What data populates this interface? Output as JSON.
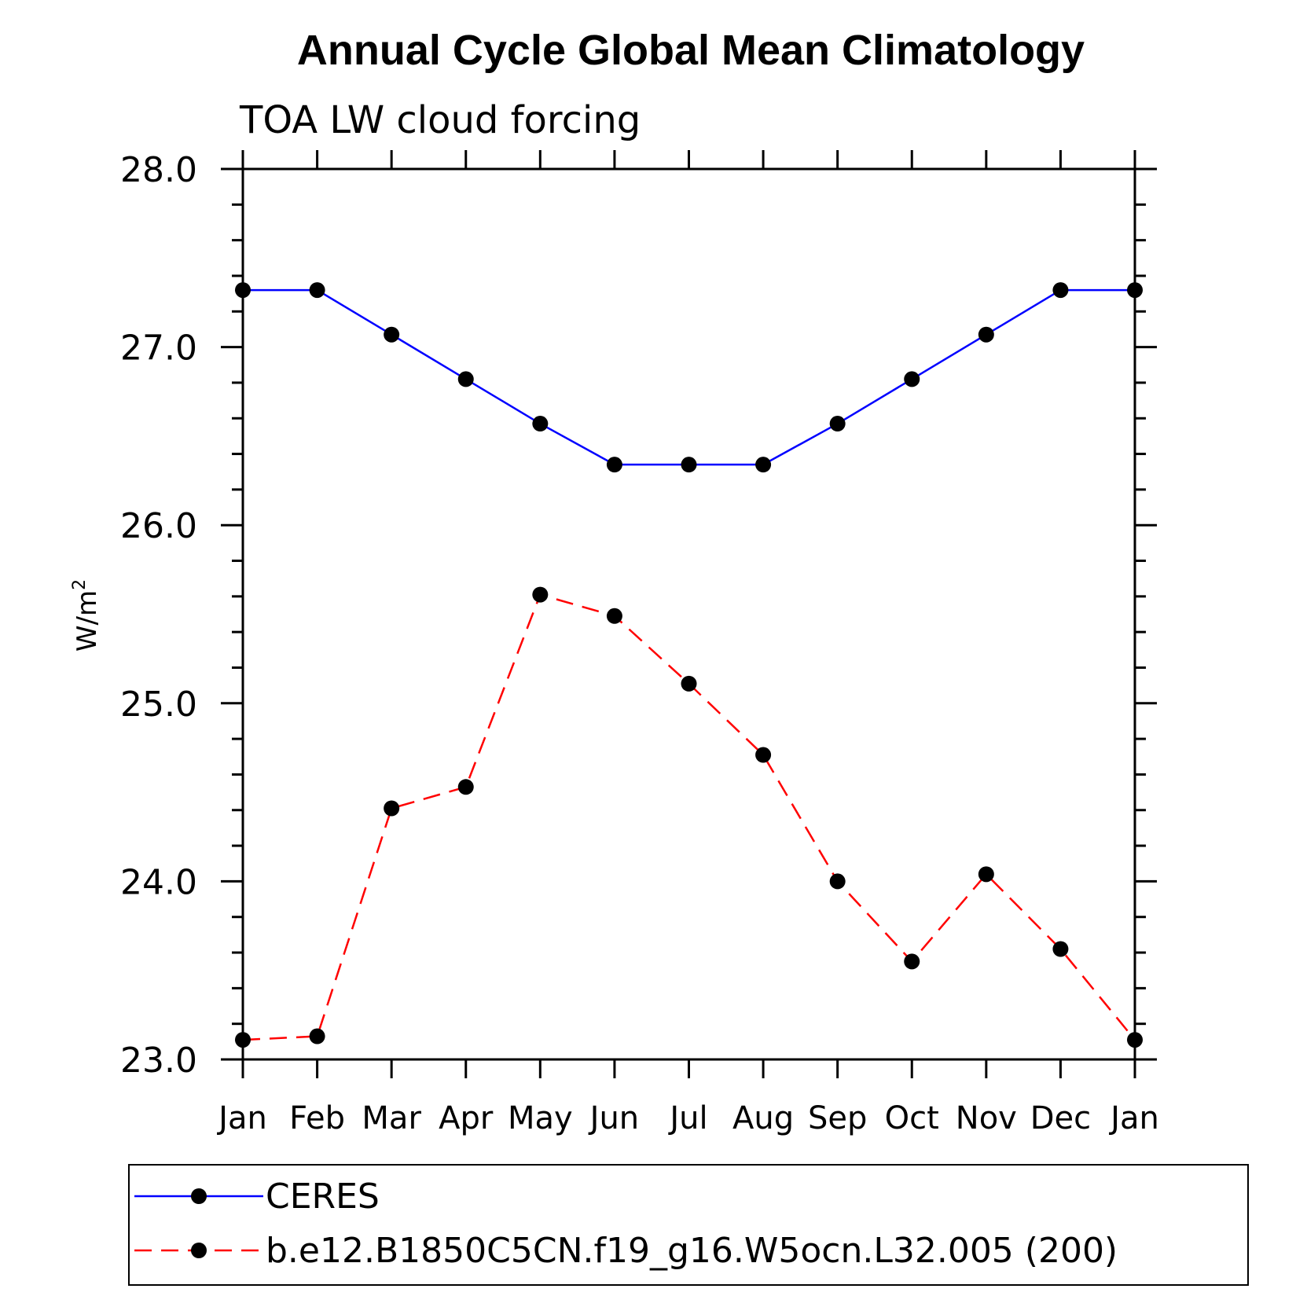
{
  "chart_data": {
    "type": "line",
    "title": "Annual Cycle Global Mean Climatology",
    "subtitle": "TOA LW cloud forcing",
    "xlabel": "",
    "ylabel": "W/m",
    "ylabel_superscript": "2",
    "ylim": [
      23.0,
      28.0
    ],
    "yticks": [
      "23.0",
      "24.0",
      "25.0",
      "26.0",
      "27.0",
      "28.0"
    ],
    "yminor_step": 0.2,
    "categories": [
      "Jan",
      "Feb",
      "Mar",
      "Apr",
      "May",
      "Jun",
      "Jul",
      "Aug",
      "Sep",
      "Oct",
      "Nov",
      "Dec",
      "Jan"
    ],
    "series": [
      {
        "name": "CERES",
        "color": "#0000ff",
        "dash": "solid",
        "values": [
          27.32,
          27.32,
          27.07,
          26.82,
          26.57,
          26.34,
          26.34,
          26.34,
          26.57,
          26.82,
          27.07,
          27.32,
          27.32
        ]
      },
      {
        "name": "b.e12.B1850C5CN.f19_g16.W5ocn.L32.005 (200)",
        "color": "#ff0000",
        "dash": "dashed",
        "values": [
          23.11,
          23.13,
          24.41,
          24.53,
          25.61,
          25.49,
          25.11,
          24.71,
          24.0,
          23.55,
          24.04,
          23.62,
          23.11
        ]
      }
    ],
    "legend_position": "bottom",
    "marker": "filled-circle",
    "grid": false
  }
}
